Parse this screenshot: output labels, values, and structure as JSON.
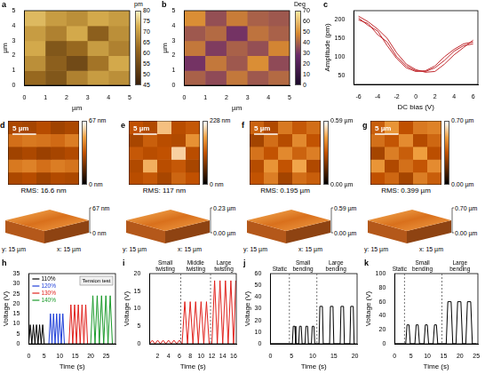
{
  "chart_data": [
    {
      "panel": "a",
      "type": "heatmap",
      "x_label": "µm",
      "y_label": "µm",
      "xlim": [
        0,
        5
      ],
      "ylim": [
        0,
        5
      ],
      "xticks": [
        0,
        1,
        2,
        3,
        4,
        5
      ],
      "yticks": [
        0,
        1,
        2,
        3,
        4,
        5
      ],
      "grid": false,
      "cells": [
        [
          62,
          58,
          66,
          70,
          68
        ],
        [
          68,
          60,
          55,
          64,
          72
        ],
        [
          72,
          58,
          62,
          70,
          66
        ],
        [
          70,
          66,
          72,
          60,
          68
        ],
        [
          74,
          70,
          68,
          72,
          70
        ]
      ],
      "colorbar": {
        "range": [
          45,
          80
        ],
        "ticks": [
          45,
          50,
          55,
          60,
          65,
          70,
          75,
          80
        ],
        "label": "pm"
      }
    },
    {
      "panel": "b",
      "type": "heatmap",
      "x_label": "µm",
      "y_label": "µm",
      "xlim": [
        0,
        5
      ],
      "ylim": [
        0,
        5
      ],
      "xticks": [
        0,
        1,
        2,
        3,
        4,
        5
      ],
      "yticks": [
        0,
        1,
        2,
        3,
        4,
        5
      ],
      "grid": false,
      "cells": [
        [
          40,
          35,
          45,
          38,
          42
        ],
        [
          30,
          45,
          38,
          50,
          35
        ],
        [
          45,
          32,
          40,
          36,
          48
        ],
        [
          38,
          42,
          30,
          44,
          40
        ],
        [
          50,
          36,
          46,
          40,
          38
        ]
      ],
      "colorbar": {
        "range": [
          0,
          70
        ],
        "ticks": [
          0,
          10,
          20,
          30,
          40,
          50,
          60,
          70
        ],
        "label": "Deg"
      }
    },
    {
      "panel": "c",
      "type": "line",
      "x_label": "DC bias (V)",
      "y_label": "Amplitude (pm)",
      "xlim": [
        -6.5,
        6.5
      ],
      "xticks": [
        -6,
        -4,
        -2,
        0,
        2,
        4,
        6
      ],
      "ylim": [
        25,
        225
      ],
      "yticks": [
        50,
        100,
        150,
        200
      ],
      "grid": false,
      "x": [
        -6,
        -5,
        -4,
        -3,
        -2,
        -1,
        0,
        1,
        2,
        3,
        4,
        5,
        6
      ],
      "series": [
        {
          "color": "#c0282d",
          "values": [
            205,
            185,
            170,
            130,
            95,
            70,
            60,
            62,
            75,
            100,
            120,
            135,
            140
          ]
        },
        {
          "color": "#c0282d",
          "values": [
            210,
            195,
            175,
            150,
            110,
            80,
            65,
            58,
            60,
            80,
            105,
            125,
            145
          ]
        },
        {
          "color": "#c0282d",
          "values": [
            200,
            190,
            160,
            140,
            100,
            75,
            62,
            60,
            70,
            90,
            115,
            130,
            135
          ]
        }
      ]
    },
    {
      "panel": "d",
      "type": "heatmap",
      "tick_labels": false,
      "xlim": [
        0,
        15
      ],
      "ylim": [
        0,
        15
      ],
      "cells": [
        [
          30,
          32,
          28,
          31,
          30
        ],
        [
          42,
          44,
          40,
          43,
          41
        ],
        [
          28,
          30,
          27,
          29,
          31
        ],
        [
          40,
          42,
          41,
          39,
          43
        ],
        [
          30,
          29,
          32,
          28,
          30
        ]
      ],
      "colorbar": {
        "range": [
          0,
          67
        ],
        "ticks": [
          {
            "value": 0,
            "label": "0 nm"
          },
          {
            "value": 67,
            "label": "67 nm"
          }
        ]
      },
      "scale_bar": {
        "value": 5,
        "label": "5 µm"
      },
      "rms_label": "RMS: 16.6 nm",
      "surface_3d": {
        "zlim": [
          0,
          67
        ],
        "z_ticks": [
          {
            "value": 67,
            "label": "67 nm"
          },
          {
            "value": 0,
            "label": "0 nm"
          }
        ],
        "x_label": "x: 15 µm",
        "y_label": "y: 15 µm"
      }
    },
    {
      "panel": "e",
      "type": "heatmap",
      "tick_labels": false,
      "xlim": [
        0,
        15
      ],
      "ylim": [
        0,
        15
      ],
      "cells": [
        [
          110,
          120,
          100,
          130,
          115
        ],
        [
          105,
          180,
          110,
          120,
          100
        ],
        [
          120,
          110,
          115,
          200,
          110
        ],
        [
          100,
          125,
          110,
          105,
          160
        ],
        [
          115,
          105,
          190,
          110,
          120
        ]
      ],
      "colorbar": {
        "range": [
          0,
          228
        ],
        "ticks": [
          {
            "value": 0,
            "label": "0 nm"
          },
          {
            "value": 228,
            "label": "228 nm"
          }
        ]
      },
      "scale_bar": {
        "value": 5,
        "label": "5 µm"
      },
      "rms_label": "RMS: 117 nm",
      "surface_3d": {
        "zlim": [
          0,
          0.23
        ],
        "z_ticks": [
          {
            "value": 0.23,
            "label": "0.23 µm"
          },
          {
            "value": 0,
            "label": "0.00 µm"
          }
        ],
        "x_label": "x: 15 µm",
        "y_label": "y: 15 µm"
      }
    },
    {
      "panel": "f",
      "type": "heatmap",
      "tick_labels": false,
      "xlim": [
        0,
        15
      ],
      "ylim": [
        0,
        15
      ],
      "cells": [
        [
          0.3,
          0.38,
          0.25,
          0.35,
          0.32
        ],
        [
          0.28,
          0.42,
          0.3,
          0.45,
          0.27
        ],
        [
          0.36,
          0.3,
          0.4,
          0.33,
          0.38
        ],
        [
          0.25,
          0.35,
          0.28,
          0.4,
          0.3
        ],
        [
          0.33,
          0.27,
          0.37,
          0.31,
          0.35
        ]
      ],
      "colorbar": {
        "range": [
          0,
          0.59
        ],
        "ticks": [
          {
            "value": 0,
            "label": "0.00 µm"
          },
          {
            "value": 0.59,
            "label": "0.59 µm"
          }
        ]
      },
      "scale_bar": {
        "value": 5,
        "label": "5 µm"
      },
      "rms_label": "RMS: 0.195 µm",
      "surface_3d": {
        "zlim": [
          0,
          0.59
        ],
        "z_ticks": [
          {
            "value": 0.59,
            "label": "0.59 µm"
          },
          {
            "value": 0,
            "label": "0.00 µm"
          }
        ],
        "x_label": "x: 15 µm",
        "y_label": "y: 15 µm"
      }
    },
    {
      "panel": "g",
      "type": "heatmap",
      "tick_labels": false,
      "xlim": [
        0,
        15
      ],
      "ylim": [
        0,
        15
      ],
      "cells": [
        [
          0.35,
          0.4,
          0.3,
          0.45,
          0.38
        ],
        [
          0.5,
          0.32,
          0.42,
          0.36,
          0.48
        ],
        [
          0.3,
          0.45,
          0.38,
          0.52,
          0.34
        ],
        [
          0.42,
          0.36,
          0.48,
          0.33,
          0.4
        ],
        [
          0.38,
          0.5,
          0.35,
          0.44,
          0.46
        ]
      ],
      "colorbar": {
        "range": [
          0,
          0.7
        ],
        "ticks": [
          {
            "value": 0,
            "label": "0.00 µm"
          },
          {
            "value": 0.7,
            "label": "0.70 µm"
          }
        ]
      },
      "scale_bar": {
        "value": 5,
        "label": "5 µm"
      },
      "rms_label": "RMS: 0.399 µm",
      "surface_3d": {
        "zlim": [
          0,
          0.7
        ],
        "z_ticks": [
          {
            "value": 0.7,
            "label": "0.70 µm"
          },
          {
            "value": 0,
            "label": "0.00 µm"
          }
        ],
        "x_label": "x: 15 µm",
        "y_label": "y: 15 µm"
      }
    },
    {
      "panel": "h",
      "type": "line",
      "x_label": "Time (s)",
      "y_label": "Voltage (V)",
      "xlim": [
        0,
        28
      ],
      "xticks": [
        0,
        5,
        10,
        15,
        20,
        25
      ],
      "ylim": [
        0,
        35
      ],
      "yticks": [
        0,
        5,
        10,
        15,
        20,
        25,
        30,
        35
      ],
      "grid": false,
      "legend": "upper left",
      "inset_label": "Tension test",
      "series": [
        {
          "name": "110%",
          "color": "#000000",
          "x": [
            0,
            0.5,
            1,
            1.5,
            2,
            2.5,
            3,
            3.5,
            4,
            4.5,
            5
          ],
          "values": [
            0,
            9.5,
            0,
            9.5,
            0,
            9.5,
            0,
            9.5,
            0,
            9.5,
            0
          ]
        },
        {
          "name": "120%",
          "color": "#1f3fd8",
          "x": [
            6.5,
            7,
            7.5,
            8,
            8.5,
            9,
            9.5,
            10,
            10.5,
            11,
            11.5
          ],
          "values": [
            0,
            15,
            0,
            15,
            0,
            15,
            0,
            15,
            0,
            15,
            0
          ]
        },
        {
          "name": "130%",
          "color": "#e0201b",
          "x": [
            13,
            13.6,
            14.2,
            14.8,
            15.4,
            16,
            16.6,
            17.2,
            17.8,
            18.4,
            19
          ],
          "values": [
            0,
            19.5,
            0,
            19.5,
            0,
            19.5,
            0,
            19.5,
            0,
            19.5,
            0
          ]
        },
        {
          "name": "140%",
          "color": "#1a9a2a",
          "x": [
            20,
            20.7,
            21.4,
            22.1,
            22.8,
            23.5,
            24.2,
            24.9,
            25.6,
            26.3,
            27
          ],
          "values": [
            0,
            24,
            0,
            24,
            0,
            24,
            0,
            24,
            0,
            24,
            0
          ]
        }
      ]
    },
    {
      "panel": "i",
      "type": "line",
      "x_label": "Time (s)",
      "y_label": "Voltage (V)",
      "xlim": [
        0.5,
        16.5
      ],
      "xticks": [
        2,
        4,
        6,
        8,
        10,
        12,
        14,
        16
      ],
      "ylim": [
        0,
        20
      ],
      "yticks": [
        0,
        5,
        10,
        15,
        20
      ],
      "grid": false,
      "dividers": [
        6.25,
        11.75
      ],
      "annotations": [
        {
          "text": "Small twisting",
          "x": 3.4
        },
        {
          "text": "Middle twisting",
          "x": 9
        },
        {
          "text": "Large twisting",
          "x": 14.2
        }
      ],
      "series": [
        {
          "color": "#e0201b",
          "x": [
            0.5,
            1,
            1.5,
            2,
            2.5,
            3,
            3.5,
            4,
            4.5,
            5,
            5.5,
            6,
            6.5,
            7,
            7.5,
            8,
            8.5,
            9,
            9.5,
            10,
            10.5,
            11,
            11.5,
            12,
            12.5,
            13,
            13.5,
            14,
            14.5,
            15,
            15.5,
            16,
            16.4
          ],
          "values": [
            0,
            1,
            0,
            1,
            0,
            1,
            0,
            1,
            0,
            1,
            0,
            1,
            0,
            12,
            0,
            12,
            0,
            12,
            0,
            12,
            0,
            12,
            0,
            0,
            18,
            0,
            18,
            0,
            18,
            0,
            18,
            0,
            18
          ]
        }
      ]
    },
    {
      "panel": "j",
      "type": "line",
      "x_label": "Time (s)",
      "y_label": "Voltage (V)",
      "xlim": [
        0,
        20.5
      ],
      "xticks": [
        0,
        5,
        10,
        15,
        20
      ],
      "ylim": [
        0,
        60
      ],
      "yticks": [
        0,
        10,
        20,
        30,
        40,
        50,
        60
      ],
      "grid": false,
      "dividers": [
        4.5,
        11
      ],
      "annotations": [
        {
          "text": "Static",
          "x": 2.2
        },
        {
          "text": "Small bending",
          "x": 7.7
        },
        {
          "text": "Large bending",
          "x": 15.5
        }
      ],
      "series": [
        {
          "color": "#000000",
          "x": [
            0,
            4.5,
            5.2,
            5.4,
            5.8,
            6,
            6.7,
            6.9,
            7.3,
            7.5,
            8.2,
            8.4,
            8.8,
            9,
            9.7,
            9.9,
            10.3,
            10.5,
            11.5,
            11.7,
            12.3,
            12.5,
            14,
            14.2,
            14.8,
            15,
            16.5,
            16.7,
            17.3,
            17.5,
            18.8,
            19,
            19.6,
            19.8,
            20
          ],
          "values": [
            0,
            0,
            0,
            15,
            15,
            0,
            0,
            15,
            15,
            0,
            0,
            15,
            15,
            0,
            0,
            15,
            15,
            0,
            0,
            32,
            32,
            0,
            0,
            32,
            32,
            0,
            0,
            32,
            32,
            0,
            0,
            32,
            32,
            0,
            0
          ]
        }
      ]
    },
    {
      "panel": "k",
      "type": "line",
      "x_label": "Time (s)",
      "y_label": "Voltage (V)",
      "xlim": [
        0,
        25.5
      ],
      "xticks": [
        0,
        5,
        10,
        15,
        20,
        25
      ],
      "ylim": [
        0,
        100
      ],
      "yticks": [
        0,
        20,
        40,
        60,
        80,
        100
      ],
      "grid": false,
      "dividers": [
        3,
        14.5
      ],
      "annotations": [
        {
          "text": "Static",
          "x": 1.5
        },
        {
          "text": "Small bending",
          "x": 8.5
        },
        {
          "text": "Large bending",
          "x": 20
        }
      ],
      "series": [
        {
          "color": "#000000",
          "x": [
            0,
            3.4,
            3.8,
            4.4,
            4.8,
            6.2,
            6.6,
            7.2,
            7.6,
            9,
            9.4,
            10,
            10.4,
            11.8,
            12.2,
            12.8,
            13.2,
            15.8,
            16.3,
            17.3,
            17.8,
            18.8,
            19.3,
            20.3,
            20.8,
            21.8,
            22.3,
            23.3,
            23.8,
            25
          ],
          "values": [
            0,
            0,
            27,
            27,
            0,
            0,
            27,
            27,
            0,
            0,
            27,
            27,
            0,
            0,
            27,
            27,
            0,
            0,
            60,
            60,
            0,
            0,
            60,
            60,
            0,
            0,
            60,
            60,
            0,
            0
          ]
        }
      ]
    }
  ]
}
